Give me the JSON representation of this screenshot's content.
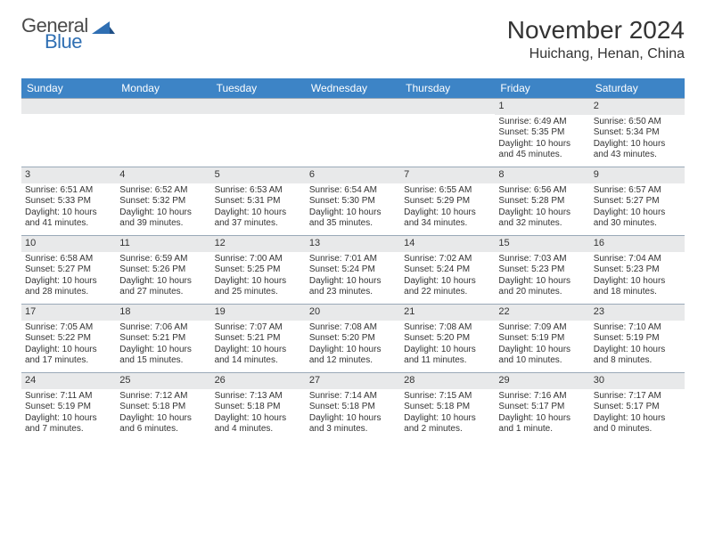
{
  "brand": {
    "word1": "General",
    "word2": "Blue",
    "word1_color": "#4a4a4a",
    "word2_color": "#2f6fb3",
    "mark_color": "#2f6fb3"
  },
  "title": {
    "month": "November 2024",
    "location": "Huichang, Henan, China"
  },
  "colors": {
    "header_bg": "#3d84c6",
    "header_text": "#ffffff",
    "daynum_bg": "#e8e9ea",
    "border": "#9aa9b8",
    "text": "#333333",
    "background": "#ffffff"
  },
  "fonts": {
    "title_size": 28,
    "location_size": 16,
    "weekday_size": 12,
    "daynum_size": 11,
    "body_size": 10
  },
  "weekdays": [
    "Sunday",
    "Monday",
    "Tuesday",
    "Wednesday",
    "Thursday",
    "Friday",
    "Saturday"
  ],
  "weeks": [
    [
      null,
      null,
      null,
      null,
      null,
      {
        "n": "1",
        "sunrise": "Sunrise: 6:49 AM",
        "sunset": "Sunset: 5:35 PM",
        "daylight": "Daylight: 10 hours and 45 minutes."
      },
      {
        "n": "2",
        "sunrise": "Sunrise: 6:50 AM",
        "sunset": "Sunset: 5:34 PM",
        "daylight": "Daylight: 10 hours and 43 minutes."
      }
    ],
    [
      {
        "n": "3",
        "sunrise": "Sunrise: 6:51 AM",
        "sunset": "Sunset: 5:33 PM",
        "daylight": "Daylight: 10 hours and 41 minutes."
      },
      {
        "n": "4",
        "sunrise": "Sunrise: 6:52 AM",
        "sunset": "Sunset: 5:32 PM",
        "daylight": "Daylight: 10 hours and 39 minutes."
      },
      {
        "n": "5",
        "sunrise": "Sunrise: 6:53 AM",
        "sunset": "Sunset: 5:31 PM",
        "daylight": "Daylight: 10 hours and 37 minutes."
      },
      {
        "n": "6",
        "sunrise": "Sunrise: 6:54 AM",
        "sunset": "Sunset: 5:30 PM",
        "daylight": "Daylight: 10 hours and 35 minutes."
      },
      {
        "n": "7",
        "sunrise": "Sunrise: 6:55 AM",
        "sunset": "Sunset: 5:29 PM",
        "daylight": "Daylight: 10 hours and 34 minutes."
      },
      {
        "n": "8",
        "sunrise": "Sunrise: 6:56 AM",
        "sunset": "Sunset: 5:28 PM",
        "daylight": "Daylight: 10 hours and 32 minutes."
      },
      {
        "n": "9",
        "sunrise": "Sunrise: 6:57 AM",
        "sunset": "Sunset: 5:27 PM",
        "daylight": "Daylight: 10 hours and 30 minutes."
      }
    ],
    [
      {
        "n": "10",
        "sunrise": "Sunrise: 6:58 AM",
        "sunset": "Sunset: 5:27 PM",
        "daylight": "Daylight: 10 hours and 28 minutes."
      },
      {
        "n": "11",
        "sunrise": "Sunrise: 6:59 AM",
        "sunset": "Sunset: 5:26 PM",
        "daylight": "Daylight: 10 hours and 27 minutes."
      },
      {
        "n": "12",
        "sunrise": "Sunrise: 7:00 AM",
        "sunset": "Sunset: 5:25 PM",
        "daylight": "Daylight: 10 hours and 25 minutes."
      },
      {
        "n": "13",
        "sunrise": "Sunrise: 7:01 AM",
        "sunset": "Sunset: 5:24 PM",
        "daylight": "Daylight: 10 hours and 23 minutes."
      },
      {
        "n": "14",
        "sunrise": "Sunrise: 7:02 AM",
        "sunset": "Sunset: 5:24 PM",
        "daylight": "Daylight: 10 hours and 22 minutes."
      },
      {
        "n": "15",
        "sunrise": "Sunrise: 7:03 AM",
        "sunset": "Sunset: 5:23 PM",
        "daylight": "Daylight: 10 hours and 20 minutes."
      },
      {
        "n": "16",
        "sunrise": "Sunrise: 7:04 AM",
        "sunset": "Sunset: 5:23 PM",
        "daylight": "Daylight: 10 hours and 18 minutes."
      }
    ],
    [
      {
        "n": "17",
        "sunrise": "Sunrise: 7:05 AM",
        "sunset": "Sunset: 5:22 PM",
        "daylight": "Daylight: 10 hours and 17 minutes."
      },
      {
        "n": "18",
        "sunrise": "Sunrise: 7:06 AM",
        "sunset": "Sunset: 5:21 PM",
        "daylight": "Daylight: 10 hours and 15 minutes."
      },
      {
        "n": "19",
        "sunrise": "Sunrise: 7:07 AM",
        "sunset": "Sunset: 5:21 PM",
        "daylight": "Daylight: 10 hours and 14 minutes."
      },
      {
        "n": "20",
        "sunrise": "Sunrise: 7:08 AM",
        "sunset": "Sunset: 5:20 PM",
        "daylight": "Daylight: 10 hours and 12 minutes."
      },
      {
        "n": "21",
        "sunrise": "Sunrise: 7:08 AM",
        "sunset": "Sunset: 5:20 PM",
        "daylight": "Daylight: 10 hours and 11 minutes."
      },
      {
        "n": "22",
        "sunrise": "Sunrise: 7:09 AM",
        "sunset": "Sunset: 5:19 PM",
        "daylight": "Daylight: 10 hours and 10 minutes."
      },
      {
        "n": "23",
        "sunrise": "Sunrise: 7:10 AM",
        "sunset": "Sunset: 5:19 PM",
        "daylight": "Daylight: 10 hours and 8 minutes."
      }
    ],
    [
      {
        "n": "24",
        "sunrise": "Sunrise: 7:11 AM",
        "sunset": "Sunset: 5:19 PM",
        "daylight": "Daylight: 10 hours and 7 minutes."
      },
      {
        "n": "25",
        "sunrise": "Sunrise: 7:12 AM",
        "sunset": "Sunset: 5:18 PM",
        "daylight": "Daylight: 10 hours and 6 minutes."
      },
      {
        "n": "26",
        "sunrise": "Sunrise: 7:13 AM",
        "sunset": "Sunset: 5:18 PM",
        "daylight": "Daylight: 10 hours and 4 minutes."
      },
      {
        "n": "27",
        "sunrise": "Sunrise: 7:14 AM",
        "sunset": "Sunset: 5:18 PM",
        "daylight": "Daylight: 10 hours and 3 minutes."
      },
      {
        "n": "28",
        "sunrise": "Sunrise: 7:15 AM",
        "sunset": "Sunset: 5:18 PM",
        "daylight": "Daylight: 10 hours and 2 minutes."
      },
      {
        "n": "29",
        "sunrise": "Sunrise: 7:16 AM",
        "sunset": "Sunset: 5:17 PM",
        "daylight": "Daylight: 10 hours and 1 minute."
      },
      {
        "n": "30",
        "sunrise": "Sunrise: 7:17 AM",
        "sunset": "Sunset: 5:17 PM",
        "daylight": "Daylight: 10 hours and 0 minutes."
      }
    ]
  ]
}
